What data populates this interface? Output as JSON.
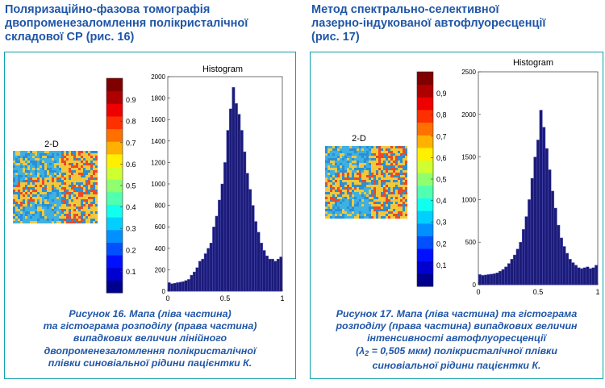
{
  "left": {
    "heading": [
      "Поляризаційно-фазова томографія",
      "двопроменезаломлення полікристалічної",
      "складової СР (рис. 16)"
    ],
    "map_title": "2-D",
    "colorbar_ticks": [
      "0.9",
      "0.8",
      "0.7",
      "0.6",
      "0.5",
      "0.4",
      "0.3",
      "0.2",
      "0.1"
    ],
    "histogram_title": "Histogram",
    "caption": [
      "Рисунок 16. Мапа (ліва частина)",
      "та гістограма розподілу (права частина)",
      "випадкових величин лінійного",
      "двопроменезаломлення полікристалічної",
      "плівки синовіальної рідини пацієнтки К."
    ],
    "chart_data": {
      "type": "bar",
      "title": "Histogram",
      "xlim": [
        0,
        1
      ],
      "ylim": [
        0,
        2000
      ],
      "xticks": [
        "0",
        "0.5",
        "1"
      ],
      "yticks": [
        "0",
        "200",
        "400",
        "600",
        "800",
        "1000",
        "1200",
        "1400",
        "1600",
        "1800",
        "2000"
      ],
      "values": [
        80,
        70,
        75,
        80,
        85,
        90,
        100,
        110,
        150,
        180,
        220,
        280,
        300,
        350,
        400,
        450,
        600,
        700,
        850,
        1000,
        1200,
        1500,
        1700,
        1900,
        1750,
        1650,
        1500,
        1300,
        1100,
        950,
        800,
        650,
        550,
        450,
        380,
        330,
        300,
        300,
        280,
        300,
        320
      ]
    }
  },
  "right": {
    "heading": [
      "Метод спектрально-селективної",
      "лазерно-індукованої автофлуоресценції",
      "(рис. 17)"
    ],
    "map_title": "2-D",
    "colorbar_ticks": [
      "0,9",
      "0,8",
      "0,7",
      "0,6",
      "0,5",
      "0,4",
      "0,3",
      "0,2",
      "0,1"
    ],
    "histogram_title": "Histogram",
    "caption_lines": [
      "Рисунок 17. Мапа (ліва частина) та гістограма",
      "розподілу (права частина) випадкових величин",
      "інтенсивності автофлуоресценції"
    ],
    "caption_lambda": "(λ",
    "caption_lambda_sub": "2",
    "caption_lambda_rest": " = 0,505 мкм) полікристалічної плівки",
    "caption_last": "синовіальної рідини пацієнтки К.",
    "chart_data": {
      "type": "bar",
      "title": "Histogram",
      "xlim": [
        0,
        1
      ],
      "ylim": [
        0,
        2500
      ],
      "xticks": [
        "0",
        "0.5",
        "1"
      ],
      "yticks": [
        "0",
        "500",
        "1000",
        "1500",
        "2000",
        "2500"
      ],
      "values": [
        120,
        110,
        115,
        120,
        125,
        130,
        140,
        160,
        180,
        210,
        250,
        300,
        350,
        420,
        500,
        650,
        800,
        1000,
        1250,
        1500,
        1700,
        2050,
        1850,
        1600,
        1350,
        1100,
        900,
        700,
        550,
        450,
        370,
        300,
        260,
        230,
        200,
        190,
        200,
        210,
        190,
        200,
        230
      ]
    }
  },
  "colors": {
    "heading": "#1f56a8",
    "panel_border": "#0f9fa8",
    "bar_fill": "#1b1b78",
    "bar_stroke": "#5a5ac8"
  }
}
